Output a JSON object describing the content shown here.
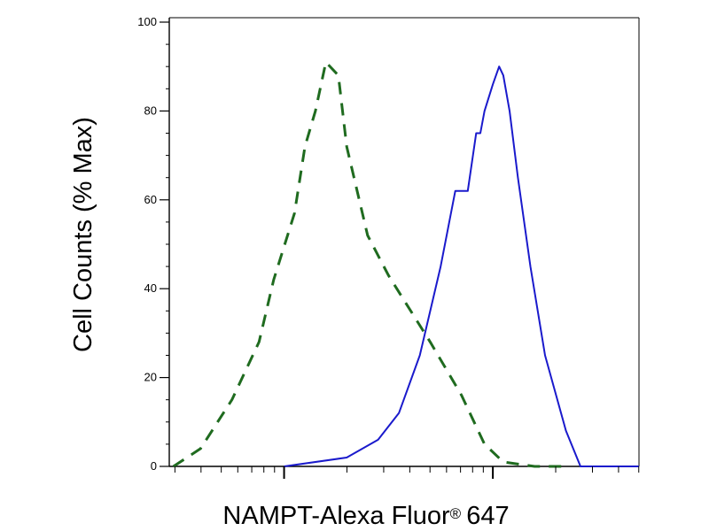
{
  "chart_data": {
    "type": "line",
    "title": "",
    "xlabel": "NAMPT-Alexa Fluor",
    "xlabel_mark": "®",
    "xlabel_suffix": "647",
    "ylabel": "Cell Counts (% Max)",
    "xscale": "log",
    "xlim": [
      0.45,
      2.7
    ],
    "ylim": [
      0,
      100
    ],
    "yticks": [
      0,
      20,
      40,
      60,
      80,
      100
    ],
    "x_major_ticks": [
      1,
      2
    ],
    "grid": false,
    "legend": "none",
    "series": [
      {
        "color": "#1f6b1f",
        "dash": "dashed",
        "x": [
          0.47,
          0.6,
          0.75,
          0.88,
          0.95,
          1.05,
          1.1,
          1.15,
          1.2,
          1.26,
          1.3,
          1.4,
          1.5,
          1.7,
          1.85,
          1.96,
          2.05,
          2.2,
          2.35
        ],
        "y": [
          0,
          4,
          15,
          28,
          42,
          57,
          72,
          80,
          91,
          88,
          72,
          52,
          43,
          28,
          16,
          5,
          1,
          0,
          0
        ]
      },
      {
        "color": "#1a1acc",
        "dash": "solid",
        "x": [
          1.0,
          1.3,
          1.45,
          1.55,
          1.65,
          1.75,
          1.82,
          1.88,
          1.92,
          1.94,
          1.96,
          2.0,
          2.03,
          2.05,
          2.08,
          2.12,
          2.18,
          2.25,
          2.35,
          2.42,
          2.5,
          2.7
        ],
        "y": [
          0,
          2,
          6,
          12,
          25,
          45,
          62,
          62,
          75,
          75,
          80,
          86,
          90,
          88,
          80,
          65,
          45,
          25,
          8,
          0,
          0,
          0
        ]
      }
    ]
  }
}
